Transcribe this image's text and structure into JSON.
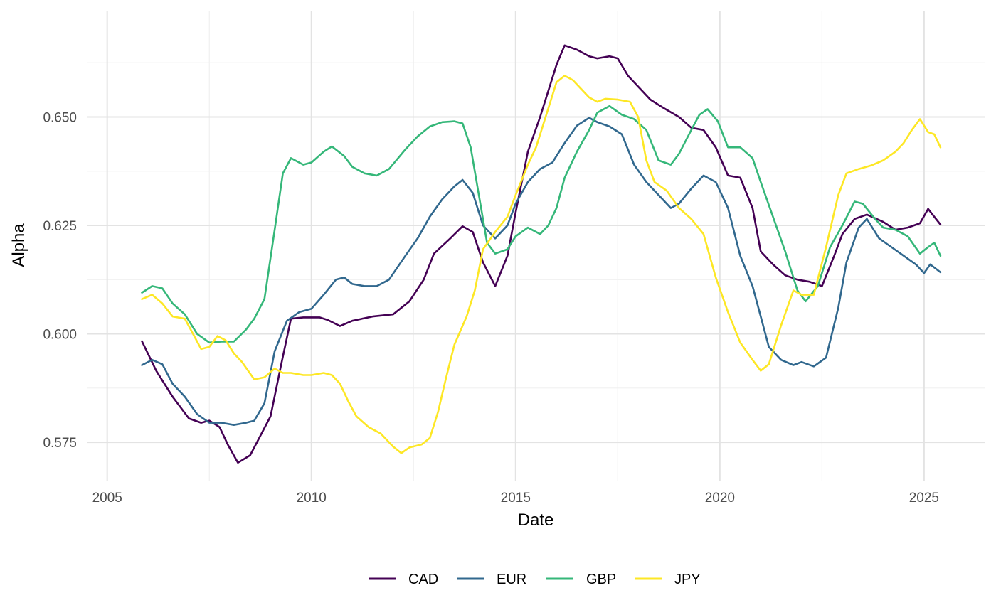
{
  "chart_data": {
    "type": "line",
    "xlabel": "Date",
    "ylabel": "Alpha",
    "x_ticks": [
      "2005",
      "2010",
      "2015",
      "2020",
      "2025"
    ],
    "y_ticks": [
      "0.575",
      "0.600",
      "0.625",
      "0.650"
    ],
    "xlim": [
      2004.5,
      2026.5
    ],
    "ylim": [
      0.566,
      0.6745
    ],
    "grid": true,
    "legend_position": "bottom",
    "series": [
      {
        "name": "CAD",
        "color": "#440154",
        "x": [
          2005.85,
          2006.2,
          2006.6,
          2007.0,
          2007.3,
          2007.5,
          2007.75,
          2007.95,
          2008.2,
          2008.5,
          2008.75,
          2009.0,
          2009.25,
          2009.5,
          2009.8,
          2010.2,
          2010.4,
          2010.7,
          2011.0,
          2011.5,
          2012.0,
          2012.4,
          2012.75,
          2013.0,
          2013.4,
          2013.7,
          2013.95,
          2014.2,
          2014.5,
          2014.8,
          2015.0,
          2015.3,
          2015.6,
          2015.8,
          2016.0,
          2016.2,
          2016.5,
          2016.8,
          2017.0,
          2017.3,
          2017.5,
          2017.75,
          2018.0,
          2018.3,
          2018.6,
          2019.0,
          2019.3,
          2019.6,
          2019.9,
          2020.2,
          2020.5,
          2020.8,
          2021.0,
          2021.3,
          2021.6,
          2021.9,
          2022.2,
          2022.5,
          2022.8,
          2023.0,
          2023.3,
          2023.6,
          2024.0,
          2024.3,
          2024.6,
          2024.9,
          2025.1,
          2025.25,
          2025.4
        ],
        "values": [
          0.5983,
          0.5915,
          0.5855,
          0.5805,
          0.5795,
          0.58,
          0.5785,
          0.5745,
          0.5703,
          0.572,
          0.5765,
          0.581,
          0.5925,
          0.6035,
          0.6038,
          0.6038,
          0.6032,
          0.6018,
          0.603,
          0.604,
          0.6045,
          0.6075,
          0.6125,
          0.6185,
          0.622,
          0.6248,
          0.6235,
          0.6165,
          0.611,
          0.618,
          0.628,
          0.642,
          0.65,
          0.656,
          0.662,
          0.6665,
          0.6655,
          0.664,
          0.6635,
          0.664,
          0.6635,
          0.6595,
          0.657,
          0.654,
          0.6522,
          0.65,
          0.6475,
          0.647,
          0.643,
          0.6365,
          0.636,
          0.629,
          0.619,
          0.616,
          0.6135,
          0.6125,
          0.612,
          0.611,
          0.618,
          0.623,
          0.6265,
          0.6275,
          0.6258,
          0.624,
          0.6245,
          0.6255,
          0.6288,
          0.627,
          0.6252
        ]
      },
      {
        "name": "EUR",
        "color": "#31688e",
        "x": [
          2005.85,
          2006.1,
          2006.35,
          2006.6,
          2006.9,
          2007.2,
          2007.5,
          2007.8,
          2008.1,
          2008.4,
          2008.6,
          2008.85,
          2009.1,
          2009.4,
          2009.7,
          2010.0,
          2010.3,
          2010.6,
          2010.8,
          2011.0,
          2011.3,
          2011.6,
          2011.9,
          2012.3,
          2012.6,
          2012.9,
          2013.2,
          2013.5,
          2013.7,
          2013.95,
          2014.2,
          2014.5,
          2014.8,
          2015.0,
          2015.3,
          2015.6,
          2015.9,
          2016.2,
          2016.5,
          2016.8,
          2017.0,
          2017.3,
          2017.6,
          2017.9,
          2018.2,
          2018.5,
          2018.8,
          2019.0,
          2019.3,
          2019.6,
          2019.9,
          2020.2,
          2020.5,
          2020.8,
          2021.0,
          2021.2,
          2021.5,
          2021.8,
          2022.0,
          2022.3,
          2022.6,
          2022.9,
          2023.1,
          2023.4,
          2023.6,
          2023.9,
          2024.2,
          2024.5,
          2024.8,
          2025.0,
          2025.15,
          2025.4
        ],
        "values": [
          0.5928,
          0.594,
          0.593,
          0.5885,
          0.5855,
          0.5815,
          0.5795,
          0.5795,
          0.579,
          0.5795,
          0.58,
          0.584,
          0.596,
          0.603,
          0.605,
          0.6058,
          0.609,
          0.6125,
          0.613,
          0.6115,
          0.611,
          0.611,
          0.6125,
          0.618,
          0.622,
          0.627,
          0.631,
          0.634,
          0.6355,
          0.6325,
          0.625,
          0.622,
          0.625,
          0.63,
          0.635,
          0.638,
          0.6395,
          0.644,
          0.648,
          0.6498,
          0.6488,
          0.6478,
          0.646,
          0.639,
          0.635,
          0.632,
          0.629,
          0.63,
          0.6335,
          0.6365,
          0.635,
          0.629,
          0.618,
          0.611,
          0.604,
          0.597,
          0.594,
          0.5928,
          0.5935,
          0.5925,
          0.5945,
          0.606,
          0.6165,
          0.6245,
          0.6265,
          0.622,
          0.62,
          0.618,
          0.616,
          0.614,
          0.616,
          0.6142
        ]
      },
      {
        "name": "GBP",
        "color": "#35b779",
        "x": [
          2005.85,
          2006.1,
          2006.35,
          2006.6,
          2006.9,
          2007.2,
          2007.5,
          2007.8,
          2008.1,
          2008.4,
          2008.6,
          2008.85,
          2009.1,
          2009.3,
          2009.5,
          2009.8,
          2010.0,
          2010.3,
          2010.5,
          2010.8,
          2011.0,
          2011.3,
          2011.6,
          2011.9,
          2012.3,
          2012.6,
          2012.9,
          2013.2,
          2013.5,
          2013.7,
          2013.9,
          2014.1,
          2014.3,
          2014.5,
          2014.8,
          2015.0,
          2015.3,
          2015.6,
          2015.8,
          2016.0,
          2016.2,
          2016.5,
          2016.8,
          2017.0,
          2017.3,
          2017.6,
          2017.9,
          2018.2,
          2018.5,
          2018.8,
          2019.0,
          2019.3,
          2019.5,
          2019.7,
          2019.95,
          2020.2,
          2020.5,
          2020.8,
          2021.0,
          2021.3,
          2021.6,
          2021.9,
          2022.1,
          2022.4,
          2022.7,
          2023.0,
          2023.3,
          2023.5,
          2023.8,
          2024.0,
          2024.3,
          2024.6,
          2024.9,
          2025.1,
          2025.25,
          2025.4
        ],
        "values": [
          0.6095,
          0.611,
          0.6105,
          0.607,
          0.6045,
          0.6,
          0.598,
          0.5982,
          0.5982,
          0.601,
          0.6035,
          0.608,
          0.624,
          0.637,
          0.6405,
          0.639,
          0.6395,
          0.642,
          0.6432,
          0.641,
          0.6385,
          0.637,
          0.6365,
          0.638,
          0.6425,
          0.6455,
          0.6478,
          0.6488,
          0.649,
          0.6485,
          0.643,
          0.632,
          0.621,
          0.6185,
          0.6195,
          0.6225,
          0.6245,
          0.623,
          0.625,
          0.629,
          0.636,
          0.642,
          0.647,
          0.651,
          0.6525,
          0.6505,
          0.6495,
          0.647,
          0.64,
          0.639,
          0.6415,
          0.647,
          0.6505,
          0.6518,
          0.649,
          0.643,
          0.643,
          0.6405,
          0.635,
          0.627,
          0.619,
          0.61,
          0.6075,
          0.611,
          0.62,
          0.625,
          0.6305,
          0.63,
          0.6265,
          0.6245,
          0.624,
          0.6225,
          0.6185,
          0.62,
          0.621,
          0.618
        ]
      },
      {
        "name": "JPY",
        "color": "#fde725",
        "x": [
          2005.85,
          2006.1,
          2006.35,
          2006.6,
          2006.9,
          2007.1,
          2007.3,
          2007.5,
          2007.7,
          2007.9,
          2008.1,
          2008.3,
          2008.6,
          2008.85,
          2009.1,
          2009.3,
          2009.5,
          2009.8,
          2010.0,
          2010.3,
          2010.5,
          2010.7,
          2010.9,
          2011.1,
          2011.4,
          2011.7,
          2012.0,
          2012.2,
          2012.4,
          2012.7,
          2012.9,
          2013.1,
          2013.3,
          2013.5,
          2013.8,
          2014.0,
          2014.2,
          2014.5,
          2014.8,
          2015.0,
          2015.3,
          2015.5,
          2015.7,
          2015.9,
          2016.0,
          2016.2,
          2016.4,
          2016.6,
          2016.8,
          2017.0,
          2017.2,
          2017.5,
          2017.8,
          2018.0,
          2018.2,
          2018.4,
          2018.7,
          2019.0,
          2019.3,
          2019.6,
          2019.9,
          2020.2,
          2020.5,
          2020.8,
          2021.0,
          2021.2,
          2021.5,
          2021.8,
          2022.0,
          2022.3,
          2022.6,
          2022.9,
          2023.1,
          2023.4,
          2023.7,
          2024.0,
          2024.3,
          2024.5,
          2024.7,
          2024.9,
          2025.1,
          2025.25,
          2025.4
        ],
        "values": [
          0.608,
          0.609,
          0.607,
          0.604,
          0.6035,
          0.6,
          0.5965,
          0.597,
          0.5995,
          0.5985,
          0.5955,
          0.5935,
          0.5895,
          0.59,
          0.592,
          0.591,
          0.591,
          0.5905,
          0.5905,
          0.591,
          0.5905,
          0.5885,
          0.5845,
          0.581,
          0.5785,
          0.577,
          0.574,
          0.5725,
          0.5738,
          0.5745,
          0.576,
          0.582,
          0.59,
          0.5975,
          0.604,
          0.61,
          0.6195,
          0.6235,
          0.627,
          0.632,
          0.639,
          0.643,
          0.649,
          0.655,
          0.658,
          0.6595,
          0.6585,
          0.6565,
          0.6545,
          0.6535,
          0.6542,
          0.654,
          0.6535,
          0.65,
          0.64,
          0.635,
          0.633,
          0.629,
          0.6265,
          0.623,
          0.613,
          0.605,
          0.598,
          0.594,
          0.5915,
          0.593,
          0.602,
          0.61,
          0.609,
          0.609,
          0.62,
          0.632,
          0.637,
          0.638,
          0.6388,
          0.64,
          0.642,
          0.644,
          0.647,
          0.6495,
          0.6465,
          0.646,
          0.643
        ]
      }
    ]
  }
}
